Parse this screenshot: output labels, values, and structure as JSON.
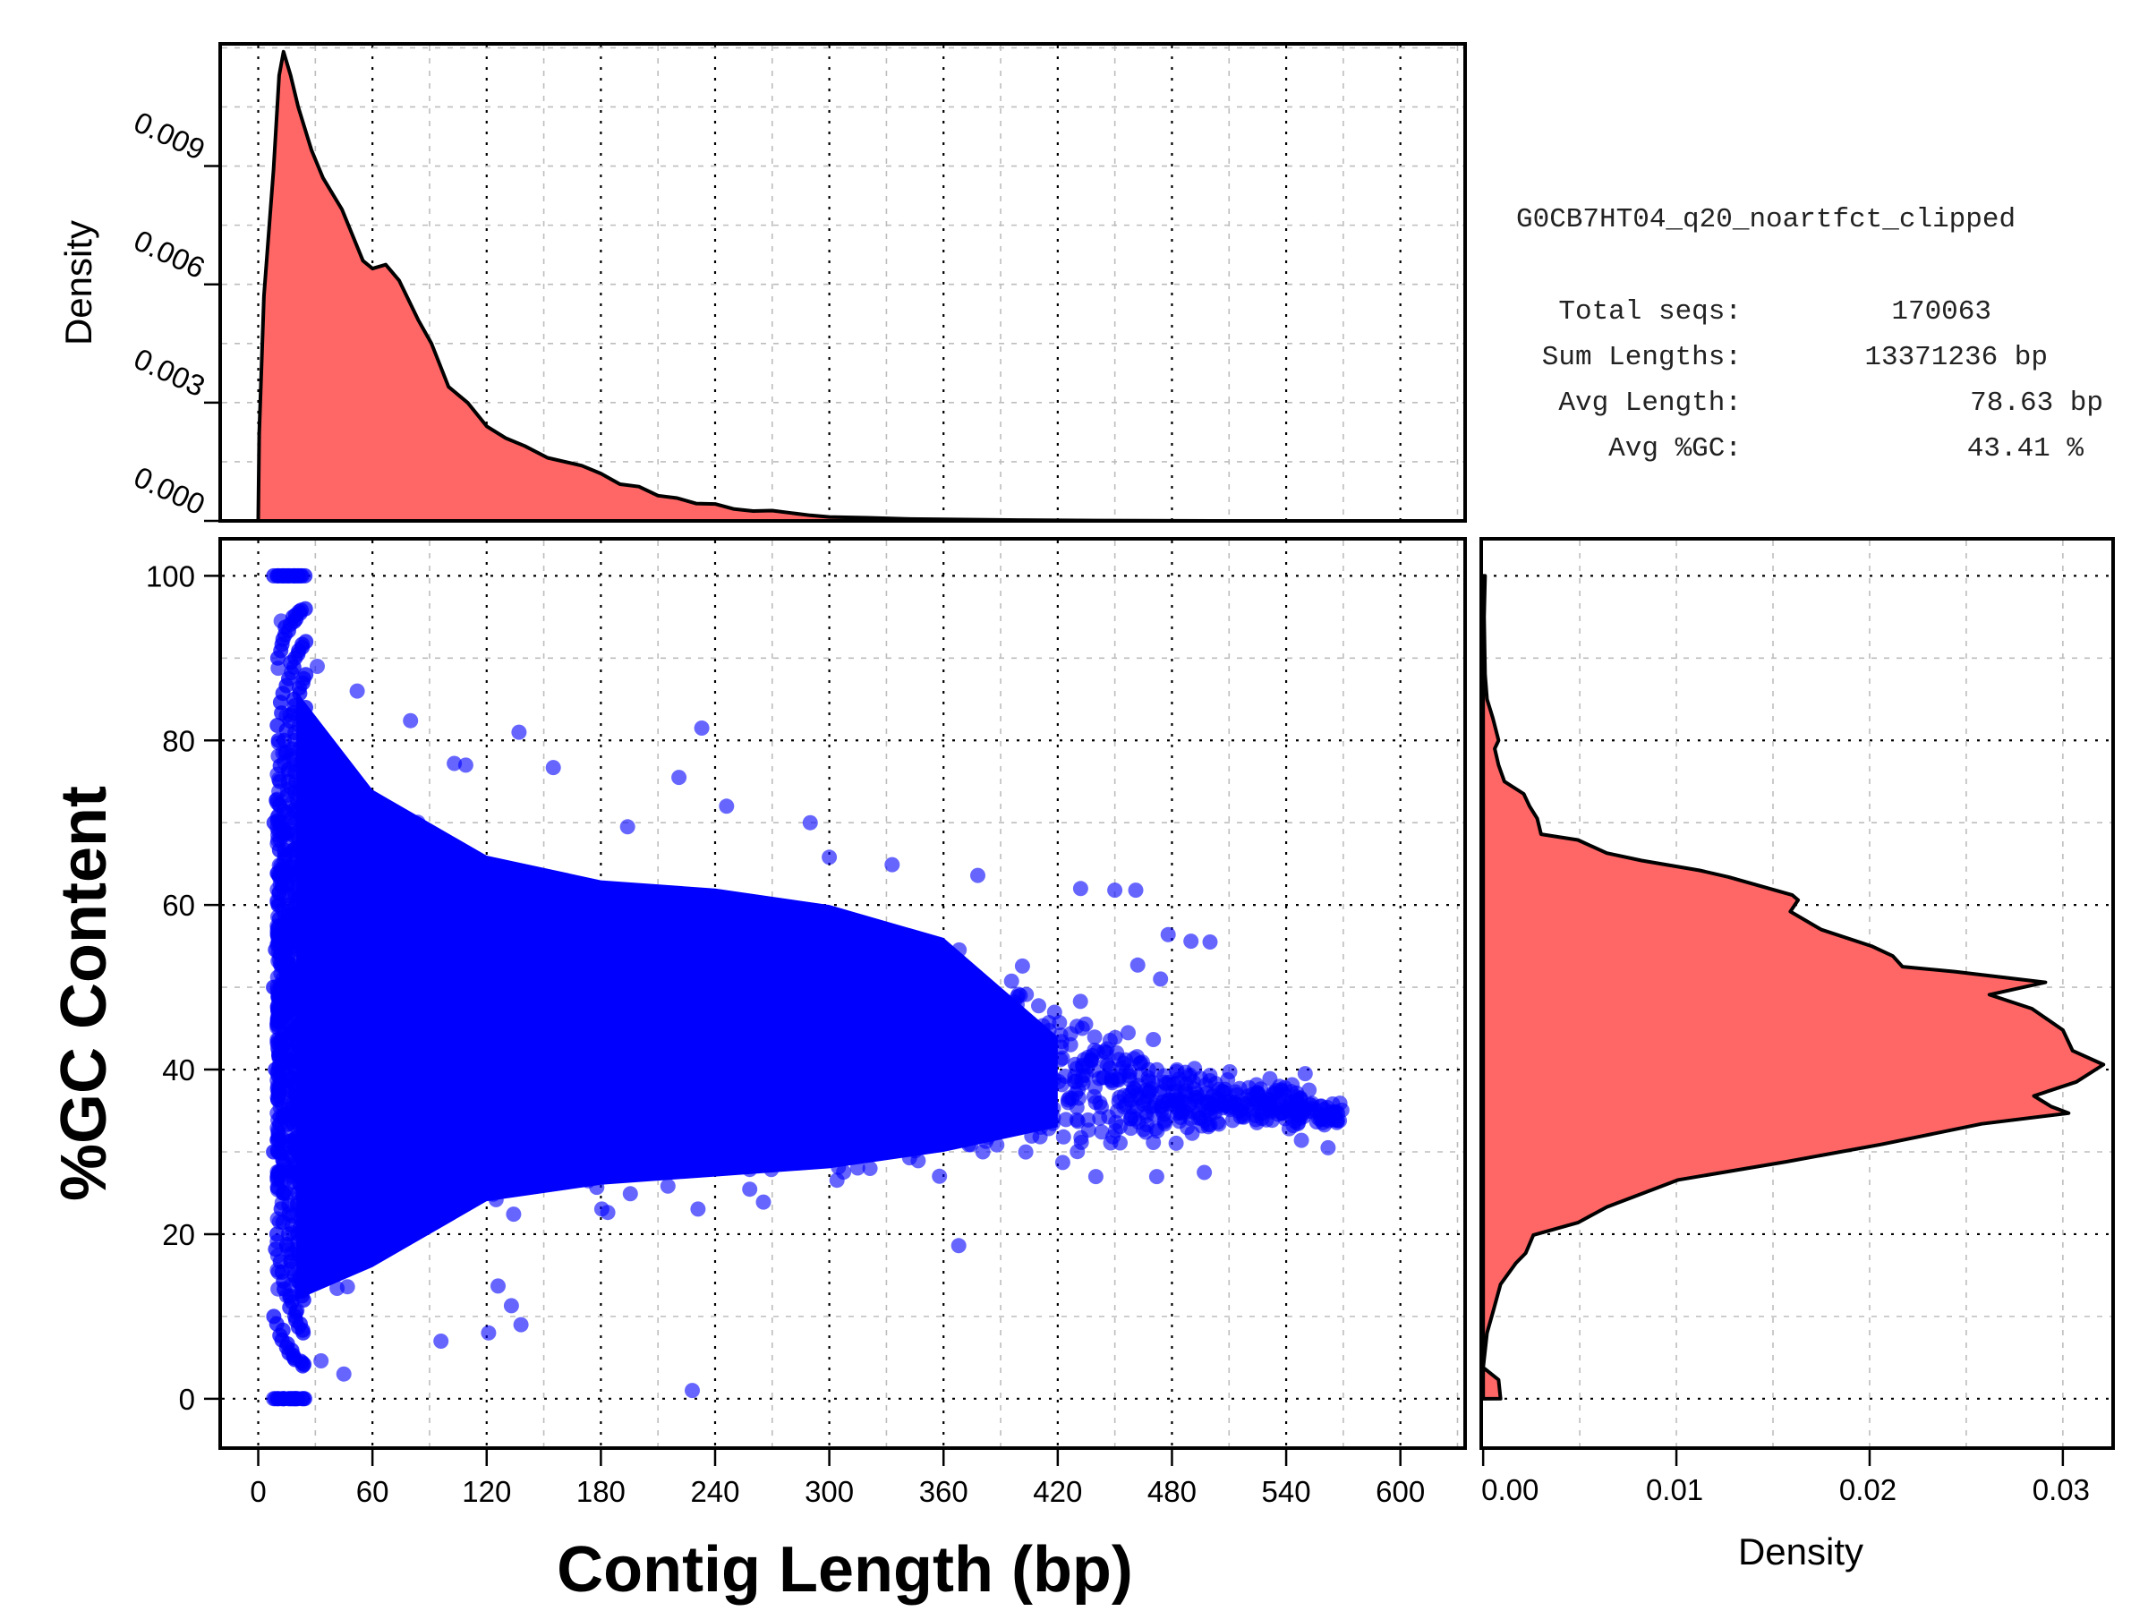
{
  "figure": {
    "sample_name": "G0CB7HT04_q20_noartfct_clipped",
    "stats": [
      {
        "label": "Total seqs:",
        "value": "170063"
      },
      {
        "label": "Sum Lengths:",
        "value": "13371236 bp"
      },
      {
        "label": "Avg Length:",
        "value": "78.63 bp"
      },
      {
        "label": "Avg %GC:",
        "value": "43.41 %"
      }
    ]
  },
  "chart_data": [
    {
      "id": "length-density",
      "type": "area",
      "title": "",
      "xlabel": "",
      "ylabel": "Density",
      "xlim": [
        -20,
        634
      ],
      "ylim": [
        0,
        0.0121
      ],
      "grid": true,
      "yticks": [
        0.0,
        0.003,
        0.006,
        0.009
      ],
      "ytick_labels": [
        "0.000",
        "0.003",
        "0.006",
        "0.009"
      ],
      "x": [
        0,
        0.5,
        3,
        8,
        11,
        13.3,
        17,
        21,
        28,
        34,
        44,
        55,
        60,
        67,
        74,
        84,
        91,
        100,
        110,
        120,
        130,
        140,
        152,
        170,
        180,
        190,
        200,
        210,
        220,
        230,
        240,
        250,
        260,
        270,
        280,
        290,
        300,
        320,
        340,
        360,
        400,
        440,
        500,
        580
      ],
      "y": [
        0.0,
        0.0022,
        0.0057,
        0.0089,
        0.0113,
        0.0119,
        0.0113,
        0.0105,
        0.0094,
        0.0087,
        0.0079,
        0.0066,
        0.0064,
        0.0065,
        0.0061,
        0.0051,
        0.0045,
        0.0034,
        0.003,
        0.0024,
        0.0021,
        0.0019,
        0.0016,
        0.0014,
        0.0012,
        0.00093,
        0.00087,
        0.00064,
        0.00058,
        0.00044,
        0.00043,
        0.0003,
        0.00025,
        0.00026,
        0.0002,
        0.00014,
        0.0001,
        8e-05,
        5e-05,
        4e-05,
        2e-05,
        1e-05,
        0.0,
        0.0
      ]
    },
    {
      "id": "gc-vs-length",
      "type": "scatter",
      "title": "",
      "xlabel": "Contig Length (bp)",
      "ylabel": "%GC Content",
      "xlim": [
        -20,
        634
      ],
      "ylim": [
        -6,
        104.5
      ],
      "grid": true,
      "xticks": [
        0,
        60,
        120,
        180,
        240,
        300,
        360,
        420,
        480,
        540,
        600
      ],
      "xtick_labels": [
        "0",
        "60",
        "120",
        "180",
        "240",
        "300",
        "360",
        "420",
        "480",
        "540",
        "600"
      ],
      "yticks": [
        0,
        20,
        40,
        60,
        80,
        100
      ],
      "ytick_labels": [
        "0",
        "20",
        "40",
        "60",
        "80",
        "100"
      ],
      "point_color": "#0000FF",
      "n_points": 170063,
      "envelope": [
        [
          8,
          0,
          100
        ],
        [
          15,
          4,
          94
        ],
        [
          25,
          6,
          90
        ],
        [
          40,
          8,
          84
        ],
        [
          60,
          12,
          78
        ],
        [
          80,
          14,
          75
        ],
        [
          100,
          17,
          71
        ],
        [
          120,
          20,
          68
        ],
        [
          150,
          21,
          66
        ],
        [
          180,
          22,
          65
        ],
        [
          240,
          23,
          64
        ],
        [
          300,
          24,
          63
        ],
        [
          330,
          25,
          62
        ],
        [
          360,
          26,
          60
        ],
        [
          400,
          28,
          57
        ],
        [
          440,
          30,
          50
        ],
        [
          480,
          31,
          45
        ],
        [
          520,
          33,
          42
        ],
        [
          570,
          34,
          38
        ]
      ],
      "outliers": [
        [
          12,
          94.5
        ],
        [
          31,
          89
        ],
        [
          52,
          86
        ],
        [
          80,
          82.4
        ],
        [
          137,
          81
        ],
        [
          233,
          81.5
        ],
        [
          221,
          75.5
        ],
        [
          155,
          76.7
        ],
        [
          109,
          77
        ],
        [
          103,
          77.2
        ],
        [
          246,
          72
        ],
        [
          194,
          69.5
        ],
        [
          290,
          70
        ],
        [
          300,
          65.8
        ],
        [
          333,
          64.9
        ],
        [
          378,
          63.6
        ],
        [
          432,
          62
        ],
        [
          450,
          61.8
        ],
        [
          461,
          61.8
        ],
        [
          478,
          56.4
        ],
        [
          490,
          55.6
        ],
        [
          500,
          55.5
        ],
        [
          462,
          52.7
        ],
        [
          474,
          51
        ],
        [
          550,
          39.5
        ],
        [
          552,
          37.5
        ],
        [
          568,
          33.8
        ],
        [
          562,
          30.5
        ],
        [
          548,
          31.4
        ],
        [
          440,
          27
        ],
        [
          497,
          27.5
        ],
        [
          472,
          27
        ],
        [
          368,
          18.6
        ],
        [
          96,
          7
        ],
        [
          121,
          8
        ],
        [
          138,
          9
        ],
        [
          133,
          11.3
        ],
        [
          126,
          13.7
        ],
        [
          228,
          1
        ],
        [
          45,
          3
        ],
        [
          33,
          4.6
        ],
        [
          10,
          100
        ],
        [
          13,
          100
        ],
        [
          16,
          100
        ],
        [
          8,
          0
        ],
        [
          12,
          0
        ],
        [
          16,
          0
        ],
        [
          20,
          0
        ]
      ]
    },
    {
      "id": "gc-density",
      "type": "area",
      "orientation": "horizontal",
      "title": "",
      "xlabel": "Density",
      "ylabel": "",
      "xlim": [
        -0.0001,
        0.0326
      ],
      "ylim": [
        -6,
        104.5
      ],
      "grid": true,
      "xticks": [
        0.0,
        0.01,
        0.02,
        0.03
      ],
      "xtick_labels": [
        "0.00",
        "0.01",
        "0.02",
        "0.03"
      ],
      "gc": [
        100,
        95,
        88,
        85,
        82.7,
        80,
        79,
        77,
        75,
        73.5,
        72,
        70.5,
        68.6,
        67.9,
        66.3,
        65.4,
        64.2,
        63.4,
        61.2,
        60.6,
        59.2,
        57,
        55,
        53.8,
        52.5,
        51.9,
        50.6,
        49.1,
        47.4,
        44.8,
        42.3,
        40.6,
        38.5,
        36.8,
        35.5,
        34.7,
        33.4,
        30.9,
        28.8,
        26.6,
        23.3,
        21.4,
        19.9,
        17.7,
        16.5,
        13.9,
        10.5,
        8,
        3.8,
        2.3,
        0
      ],
      "density": [
        0.0001,
        5e-05,
        0.0001,
        0.0002,
        0.0005,
        0.0008,
        0.0006,
        0.0008,
        0.0011,
        0.0021,
        0.0024,
        0.0028,
        0.003,
        0.0049,
        0.0064,
        0.0082,
        0.0112,
        0.0127,
        0.016,
        0.0163,
        0.0159,
        0.0175,
        0.0201,
        0.0212,
        0.0217,
        0.0244,
        0.0291,
        0.0262,
        0.0284,
        0.03,
        0.0305,
        0.0321,
        0.0307,
        0.0285,
        0.0294,
        0.0303,
        0.0258,
        0.0206,
        0.0157,
        0.0101,
        0.0064,
        0.0049,
        0.0026,
        0.0022,
        0.0017,
        0.0009,
        0.0005,
        0.0002,
        0.0,
        0.0008,
        0.0009
      ]
    }
  ]
}
